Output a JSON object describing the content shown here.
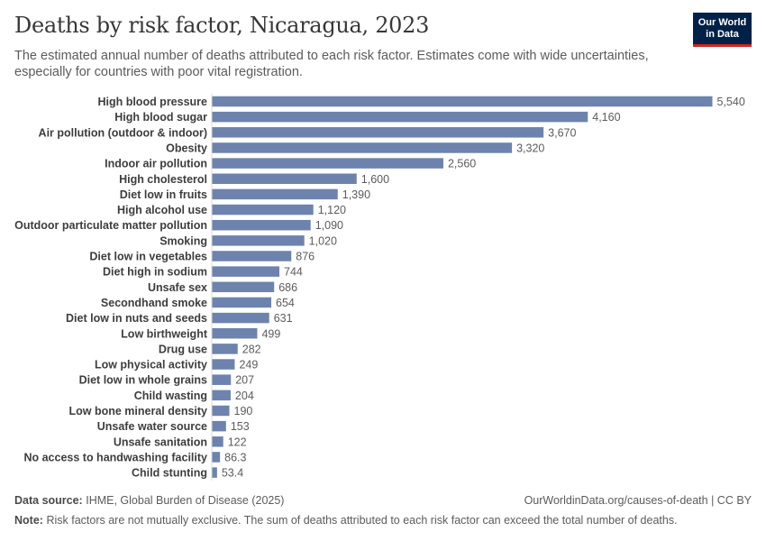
{
  "header": {
    "title": "Deaths by risk factor, Nicaragua, 2023",
    "subtitle": "The estimated annual number of deaths attributed to each risk factor. Estimates come with wide uncertainties, especially for countries with poor vital registration.",
    "logo_line1": "Our World",
    "logo_line2": "in Data"
  },
  "colors": {
    "bar": "#6d83ad",
    "logo_bg": "#002147",
    "logo_accent": "#ce261e"
  },
  "chart_data": {
    "type": "bar",
    "orientation": "horizontal",
    "title": "Deaths by risk factor, Nicaragua, 2023",
    "xlabel": "",
    "ylabel": "",
    "xlim": [
      0,
      5540
    ],
    "categories": [
      "High blood pressure",
      "High blood sugar",
      "Air pollution (outdoor & indoor)",
      "Obesity",
      "Indoor air pollution",
      "High cholesterol",
      "Diet low in fruits",
      "High alcohol use",
      "Outdoor particulate matter pollution",
      "Smoking",
      "Diet low in vegetables",
      "Diet high in sodium",
      "Unsafe sex",
      "Secondhand smoke",
      "Diet low in nuts and seeds",
      "Low birthweight",
      "Drug use",
      "Low physical activity",
      "Diet low in whole grains",
      "Child wasting",
      "Low bone mineral density",
      "Unsafe water source",
      "Unsafe sanitation",
      "No access to handwashing facility",
      "Child stunting"
    ],
    "values": [
      5540,
      4160,
      3670,
      3320,
      2560,
      1600,
      1390,
      1120,
      1090,
      1020,
      876,
      744,
      686,
      654,
      631,
      499,
      282,
      249,
      207,
      204,
      190,
      153,
      122,
      86.3,
      53.4
    ],
    "value_labels": [
      "5,540",
      "4,160",
      "3,670",
      "3,320",
      "2,560",
      "1,600",
      "1,390",
      "1,120",
      "1,090",
      "1,020",
      "876",
      "744",
      "686",
      "654",
      "631",
      "499",
      "282",
      "249",
      "207",
      "204",
      "190",
      "153",
      "122",
      "86.3",
      "53.4"
    ]
  },
  "footer": {
    "source_label": "Data source:",
    "source_text": "IHME, Global Burden of Disease (2025)",
    "url_text": "OurWorldinData.org/causes-of-death | CC BY",
    "note_label": "Note:",
    "note_text": "Risk factors are not mutually exclusive. The sum of deaths attributed to each risk factor can exceed the total number of deaths."
  }
}
